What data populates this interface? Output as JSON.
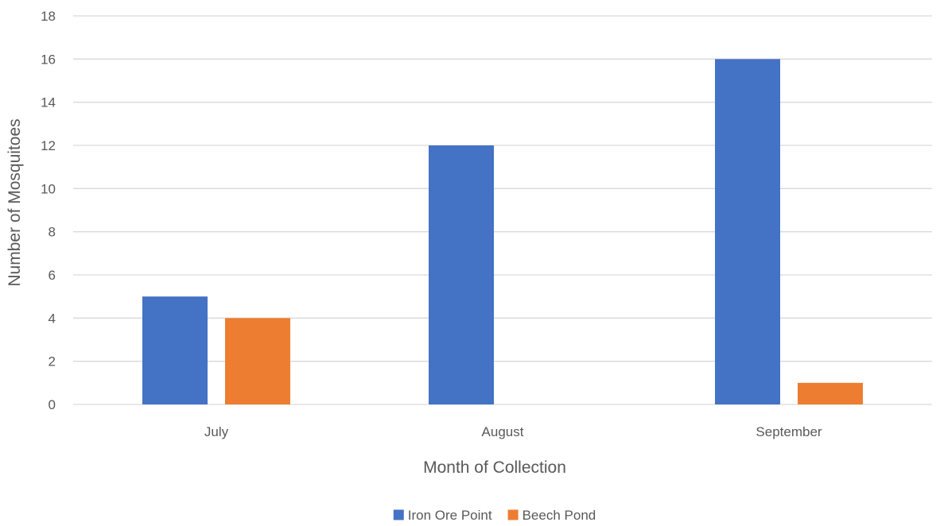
{
  "chart_data": {
    "type": "bar",
    "title": "",
    "xlabel": "Month of Collection",
    "ylabel": "Number of Mosquitoes",
    "categories": [
      "July",
      "August",
      "September"
    ],
    "series": [
      {
        "name": "Iron Ore Point",
        "values": [
          5,
          12,
          16
        ],
        "color": "#4472c4"
      },
      {
        "name": "Beech Pond",
        "values": [
          4,
          0,
          1
        ],
        "color": "#ed7d31"
      }
    ],
    "ylim": [
      0,
      18
    ],
    "yticks": [
      0,
      2,
      4,
      6,
      8,
      10,
      12,
      14,
      16,
      18
    ],
    "grid": true,
    "legend_position": "bottom"
  }
}
